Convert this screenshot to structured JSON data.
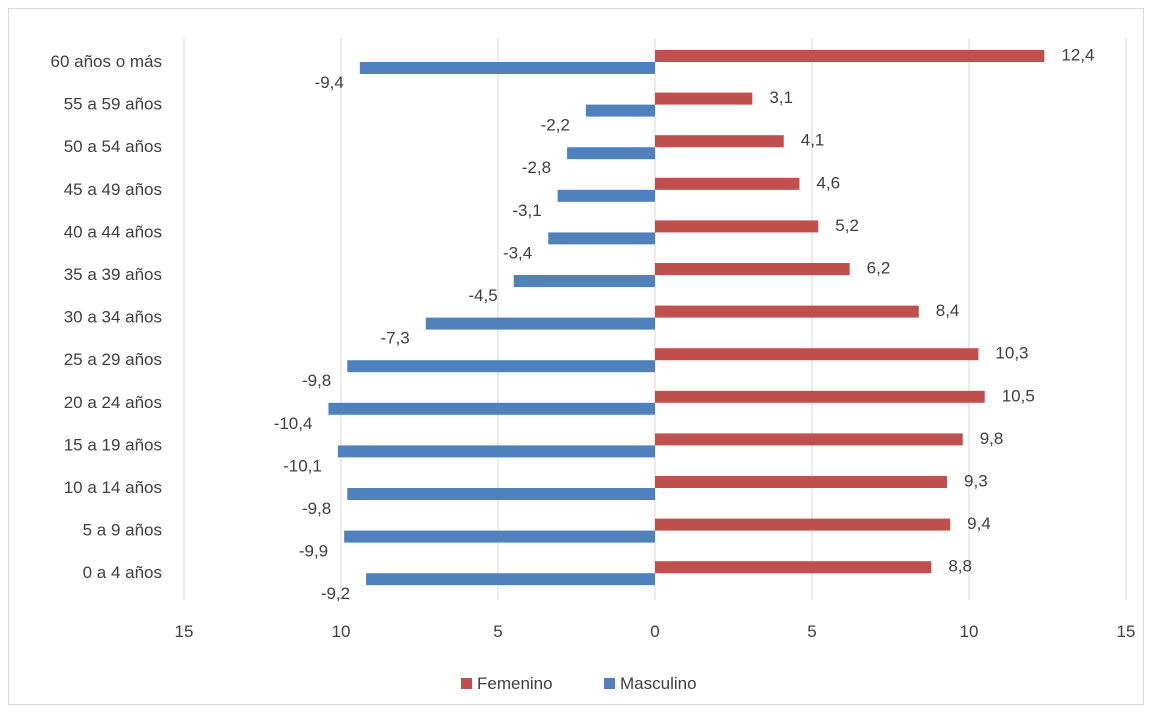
{
  "chart_data": {
    "type": "bar",
    "orientation": "horizontal",
    "layout": "population-pyramid",
    "categories": [
      "60 años o más",
      "55 a 59 años",
      "50 a 54 años",
      "45 a 49 años",
      "40 a 44 años",
      "35 a 39 años",
      "30 a 34 años",
      "25 a 29 años",
      "20 a 24 años",
      "15 a 19 años",
      "10 a 14 años",
      "5 a 9 años",
      "0 a 4 años"
    ],
    "series": [
      {
        "name": "Femenino",
        "color": "#c0504d",
        "values": [
          12.4,
          3.1,
          4.1,
          4.6,
          5.2,
          6.2,
          8.4,
          10.3,
          10.5,
          9.8,
          9.3,
          9.4,
          8.8
        ],
        "labels": [
          "12,4",
          "3,1",
          "4,1",
          "4,6",
          "5,2",
          "6,2",
          "8,4",
          "10,3",
          "10,5",
          "9,8",
          "9,3",
          "9,4",
          "8,8"
        ]
      },
      {
        "name": "Masculino",
        "color": "#4f81bd",
        "values": [
          -9.4,
          -2.2,
          -2.8,
          -3.1,
          -3.4,
          -4.5,
          -7.3,
          -9.8,
          -10.4,
          -10.1,
          -9.8,
          -9.9,
          -9.2
        ],
        "labels": [
          "-9,4",
          "-2,2",
          "-2,8",
          "-3,1",
          "-3,4",
          "-4,5",
          "-7,3",
          "-9,8",
          "-10,4",
          "-10,1",
          "-9,8",
          "-9,9",
          "-9,2"
        ]
      }
    ],
    "x_ticks": [
      -15,
      -10,
      -5,
      0,
      5,
      10,
      15
    ],
    "x_tick_labels": [
      "15",
      "10",
      "5",
      "0",
      "5",
      "10",
      "15"
    ],
    "xlim": [
      -15,
      15
    ],
    "grid": "vertical",
    "legend": "bottom-center",
    "title": "",
    "xlabel": "",
    "ylabel": ""
  }
}
